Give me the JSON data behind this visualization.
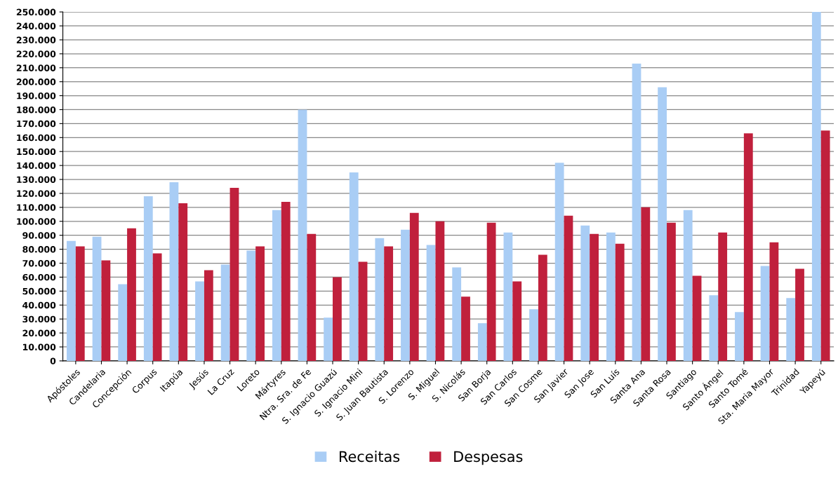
{
  "chart_data": {
    "type": "bar",
    "categories": [
      "Apóstoles",
      "Candelaria",
      "Concepción",
      "Corpus",
      "Itapúa",
      "Jesús",
      "La Cruz",
      "Loreto",
      "Mártyres",
      "Ntra. Sra. de Fe",
      "S. Ignacio Guazú",
      "S. Ignacio Mini",
      "S. Juan Bautista",
      "S. Lorenzo",
      "S. Miguel",
      "S. Nicolás",
      "San Borja",
      "San Carlos",
      "San Cosme",
      "San Javier",
      "San Jose",
      "San Luís",
      "Santa Ana",
      "Santa Rosa",
      "Santiago",
      "Santo Ángel",
      "Santo Tomé",
      "Sta. Maria Mayor",
      "Trinidad",
      "Yapeyú"
    ],
    "series": [
      {
        "name": "Receitas",
        "color": "#a9cdf5",
        "values": [
          86000,
          89000,
          55000,
          118000,
          128000,
          57000,
          69000,
          79000,
          108000,
          180000,
          31000,
          135000,
          88000,
          94000,
          83000,
          67000,
          27000,
          92000,
          37000,
          142000,
          97000,
          92000,
          213000,
          196000,
          108000,
          47000,
          35000,
          68000,
          45000,
          250000
        ]
      },
      {
        "name": "Despesas",
        "color": "#c0203c",
        "values": [
          82000,
          72000,
          95000,
          77000,
          113000,
          65000,
          124000,
          82000,
          114000,
          91000,
          60000,
          71000,
          82000,
          106000,
          100000,
          46000,
          99000,
          57000,
          76000,
          104000,
          91000,
          84000,
          110000,
          99000,
          61000,
          92000,
          163000,
          85000,
          66000,
          165000
        ]
      }
    ],
    "ylim": [
      0,
      250000
    ],
    "yticks": [
      {
        "value": 0,
        "label": "0"
      },
      {
        "value": 10000,
        "label": "10.000"
      },
      {
        "value": 20000,
        "label": "20.000"
      },
      {
        "value": 30000,
        "label": "30.000"
      },
      {
        "value": 40000,
        "label": "40.000"
      },
      {
        "value": 50000,
        "label": "50.000"
      },
      {
        "value": 60000,
        "label": "60.000"
      },
      {
        "value": 70000,
        "label": "70.000"
      },
      {
        "value": 80000,
        "label": "80.000"
      },
      {
        "value": 90000,
        "label": "90.000"
      },
      {
        "value": 100000,
        "label": "100.000"
      },
      {
        "value": 110000,
        "label": "110.000"
      },
      {
        "value": 120000,
        "label": "120.000"
      },
      {
        "value": 130000,
        "label": "130.000"
      },
      {
        "value": 140000,
        "label": "140.000"
      },
      {
        "value": 150000,
        "label": "150.000"
      },
      {
        "value": 160000,
        "label": "160.000"
      },
      {
        "value": 170000,
        "label": "170.000"
      },
      {
        "value": 180000,
        "label": "180.000"
      },
      {
        "value": 190000,
        "label": "190.000"
      },
      {
        "value": 200000,
        "label": "200.000"
      },
      {
        "value": 210000,
        "label": "210.000"
      },
      {
        "value": 220000,
        "label": "220.000"
      },
      {
        "value": 230000,
        "label": "230.000"
      },
      {
        "value": 240000,
        "label": "240.000"
      },
      {
        "value": 250000,
        "label": "250.000"
      }
    ],
    "grid": "y",
    "legend": "bottom"
  }
}
